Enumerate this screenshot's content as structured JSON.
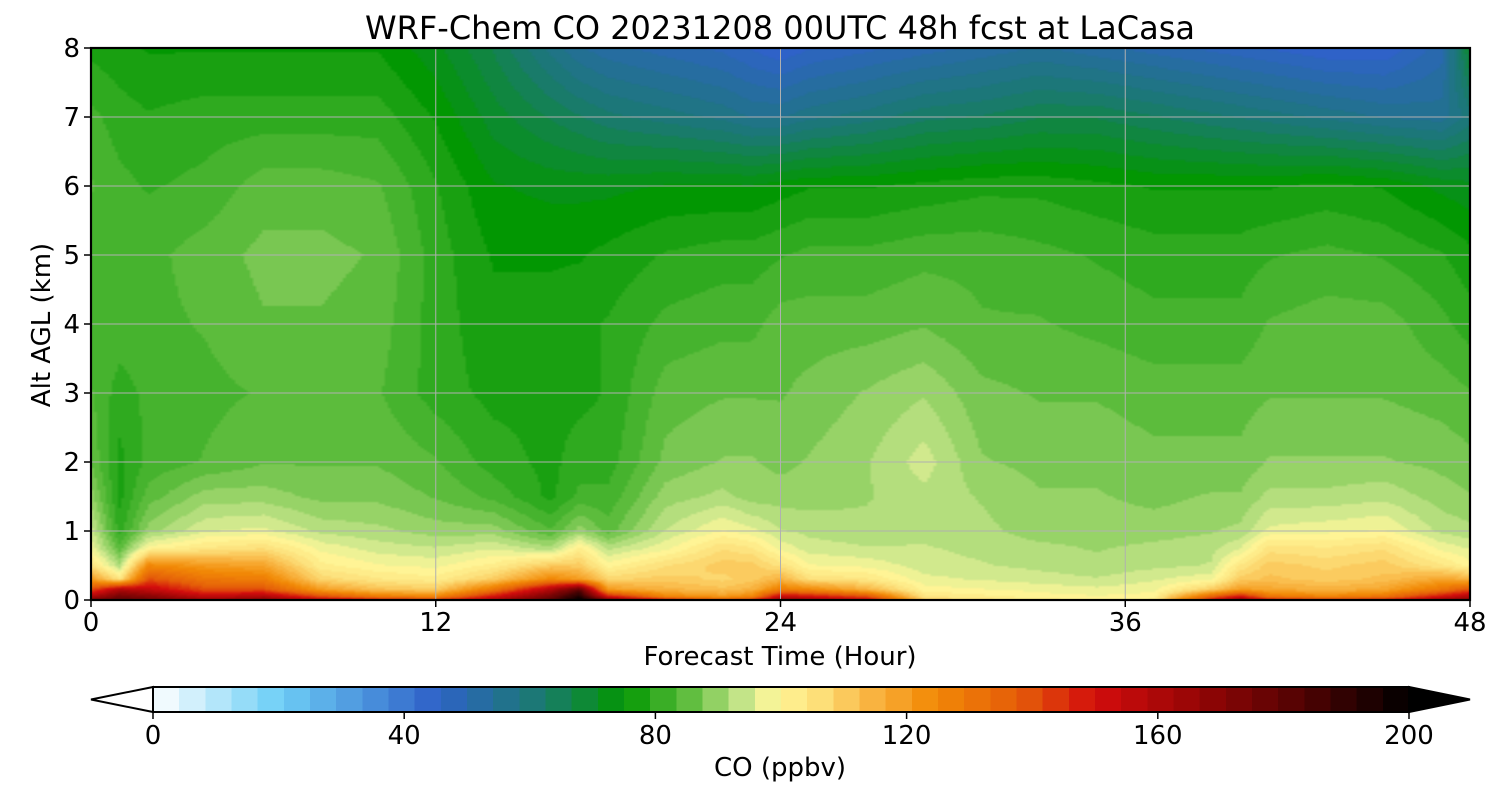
{
  "chart_data": {
    "type": "heatmap",
    "title": "WRF-Chem CO  20231208 00UTC 48h fcst at LaCasa",
    "xlabel": "Forecast Time (Hour)",
    "ylabel": "Alt AGL (km)",
    "xlim": [
      0,
      48
    ],
    "ylim": [
      0,
      8
    ],
    "xticks": [
      0,
      12,
      24,
      36,
      48
    ],
    "yticks": [
      0,
      1,
      2,
      3,
      4,
      5,
      6,
      7,
      8
    ],
    "grid": true,
    "colorbar": {
      "label": "CO  (ppbv)",
      "min": 0,
      "max": 200,
      "ticks": [
        0,
        40,
        80,
        120,
        160,
        200
      ],
      "extend": "both",
      "colors": [
        {
          "v": 0,
          "c": "#ffffff"
        },
        {
          "v": 20,
          "c": "#6ecff6"
        },
        {
          "v": 45,
          "c": "#2f62c8"
        },
        {
          "v": 62,
          "c": "#1a7a6e"
        },
        {
          "v": 75,
          "c": "#029702"
        },
        {
          "v": 85,
          "c": "#5cbc3c"
        },
        {
          "v": 94,
          "c": "#c6e58a"
        },
        {
          "v": 99,
          "c": "#fff79a"
        },
        {
          "v": 106,
          "c": "#fde07a"
        },
        {
          "v": 114,
          "c": "#f9b644"
        },
        {
          "v": 124,
          "c": "#f28a06"
        },
        {
          "v": 138,
          "c": "#e45c09"
        },
        {
          "v": 150,
          "c": "#d30d0d"
        },
        {
          "v": 165,
          "c": "#9a0606"
        },
        {
          "v": 182,
          "c": "#550303"
        },
        {
          "v": 200,
          "c": "#000000"
        }
      ]
    },
    "field": {
      "x_hours": [
        0,
        1,
        2,
        4,
        6,
        8,
        10,
        12,
        14,
        16,
        17,
        18,
        20,
        22,
        23,
        24,
        25,
        27,
        29,
        31,
        33,
        35,
        37,
        39,
        40,
        41,
        43,
        45,
        47,
        48
      ],
      "z_km": [
        0,
        0.05,
        0.15,
        0.3,
        0.5,
        0.75,
        1.0,
        1.5,
        2.0,
        3.0,
        4.0,
        5.0,
        6.0,
        7.0,
        8.0
      ],
      "co_ppbv": [
        [
          175,
          180,
          175,
          165,
          170,
          160,
          150,
          145,
          160,
          180,
          200,
          175,
          150,
          140,
          145,
          168,
          165,
          155,
          110,
          105,
          103,
          100,
          102,
          150,
          170,
          150,
          145,
          148,
          165,
          170
        ],
        [
          160,
          175,
          170,
          155,
          160,
          140,
          128,
          125,
          150,
          175,
          195,
          150,
          125,
          120,
          125,
          155,
          150,
          140,
          104,
          102,
          100,
          99,
          100,
          135,
          150,
          130,
          125,
          130,
          150,
          160
        ],
        [
          140,
          160,
          155,
          140,
          140,
          120,
          112,
          110,
          130,
          160,
          180,
          120,
          115,
          112,
          115,
          128,
          125,
          115,
          100,
          99,
          98,
          97,
          98,
          110,
          120,
          118,
          115,
          118,
          130,
          140
        ],
        [
          120,
          105,
          140,
          130,
          128,
          108,
          104,
          102,
          110,
          125,
          120,
          108,
          110,
          108,
          110,
          115,
          106,
          104,
          97,
          96,
          95,
          94,
          96,
          98,
          110,
          112,
          110,
          112,
          118,
          115
        ],
        [
          105,
          92,
          125,
          120,
          118,
          102,
          99,
          98,
          102,
          110,
          110,
          100,
          106,
          110,
          110,
          105,
          99,
          98,
          95,
          94,
          93,
          92,
          93,
          94,
          104,
          110,
          108,
          110,
          104,
          100
        ],
        [
          98,
          85,
          100,
          104,
          106,
          98,
          95,
          94,
          96,
          92,
          102,
          93,
          98,
          106,
          104,
          98,
          95,
          94,
          94,
          93,
          92,
          91,
          92,
          93,
          96,
          105,
          104,
          106,
          98,
          96
        ],
        [
          95,
          80,
          90,
          96,
          97,
          93,
          92,
          90,
          90,
          84,
          90,
          85,
          94,
          99,
          97,
          94,
          93,
          92,
          93,
          92,
          90,
          90,
          90,
          91,
          92,
          97,
          98,
          99,
          93,
          92
        ],
        [
          90,
          78,
          85,
          90,
          90,
          88,
          88,
          86,
          83,
          78,
          82,
          82,
          90,
          92,
          90,
          90,
          90,
          91,
          93,
          91,
          89,
          89,
          88,
          89,
          89,
          92,
          92,
          93,
          90,
          89
        ],
        [
          86,
          78,
          82,
          84,
          86,
          86,
          86,
          84,
          80,
          78,
          80,
          80,
          87,
          89,
          89,
          88,
          89,
          91,
          95,
          89,
          88,
          88,
          87,
          87,
          87,
          89,
          89,
          89,
          88,
          87
        ],
        [
          84,
          80,
          82,
          83,
          84,
          85,
          84,
          80,
          78,
          78,
          78,
          79,
          85,
          86,
          86,
          86,
          87,
          89,
          91,
          87,
          86,
          86,
          85,
          85,
          85,
          86,
          86,
          86,
          85,
          84
        ],
        [
          83,
          83,
          83,
          84,
          86,
          86,
          85,
          80,
          77,
          77,
          78,
          79,
          82,
          83,
          83,
          85,
          85,
          85,
          86,
          84,
          84,
          83,
          82,
          82,
          82,
          84,
          85,
          85,
          82,
          80
        ],
        [
          82,
          82,
          83,
          85,
          87,
          87,
          86,
          80,
          76,
          76,
          76,
          77,
          79,
          80,
          80,
          81,
          82,
          82,
          83,
          83,
          82,
          81,
          80,
          80,
          80,
          81,
          82,
          81,
          79,
          77
        ],
        [
          84,
          82,
          81,
          82,
          85,
          85,
          84,
          79,
          74,
          73,
          73,
          73,
          74,
          74,
          74,
          75,
          76,
          76,
          77,
          78,
          78,
          77,
          76,
          76,
          76,
          76,
          77,
          76,
          73,
          72
        ],
        [
          82,
          80,
          79,
          80,
          80,
          80,
          80,
          76,
          70,
          66,
          64,
          62,
          60,
          58,
          56,
          56,
          58,
          60,
          63,
          64,
          66,
          66,
          64,
          62,
          61,
          60,
          58,
          56,
          55,
          60
        ],
        [
          78,
          77,
          76,
          76,
          76,
          76,
          76,
          72,
          66,
          58,
          54,
          52,
          50,
          48,
          46,
          44,
          46,
          48,
          50,
          52,
          54,
          52,
          50,
          48,
          47,
          46,
          44,
          44,
          50,
          70
        ]
      ]
    }
  }
}
